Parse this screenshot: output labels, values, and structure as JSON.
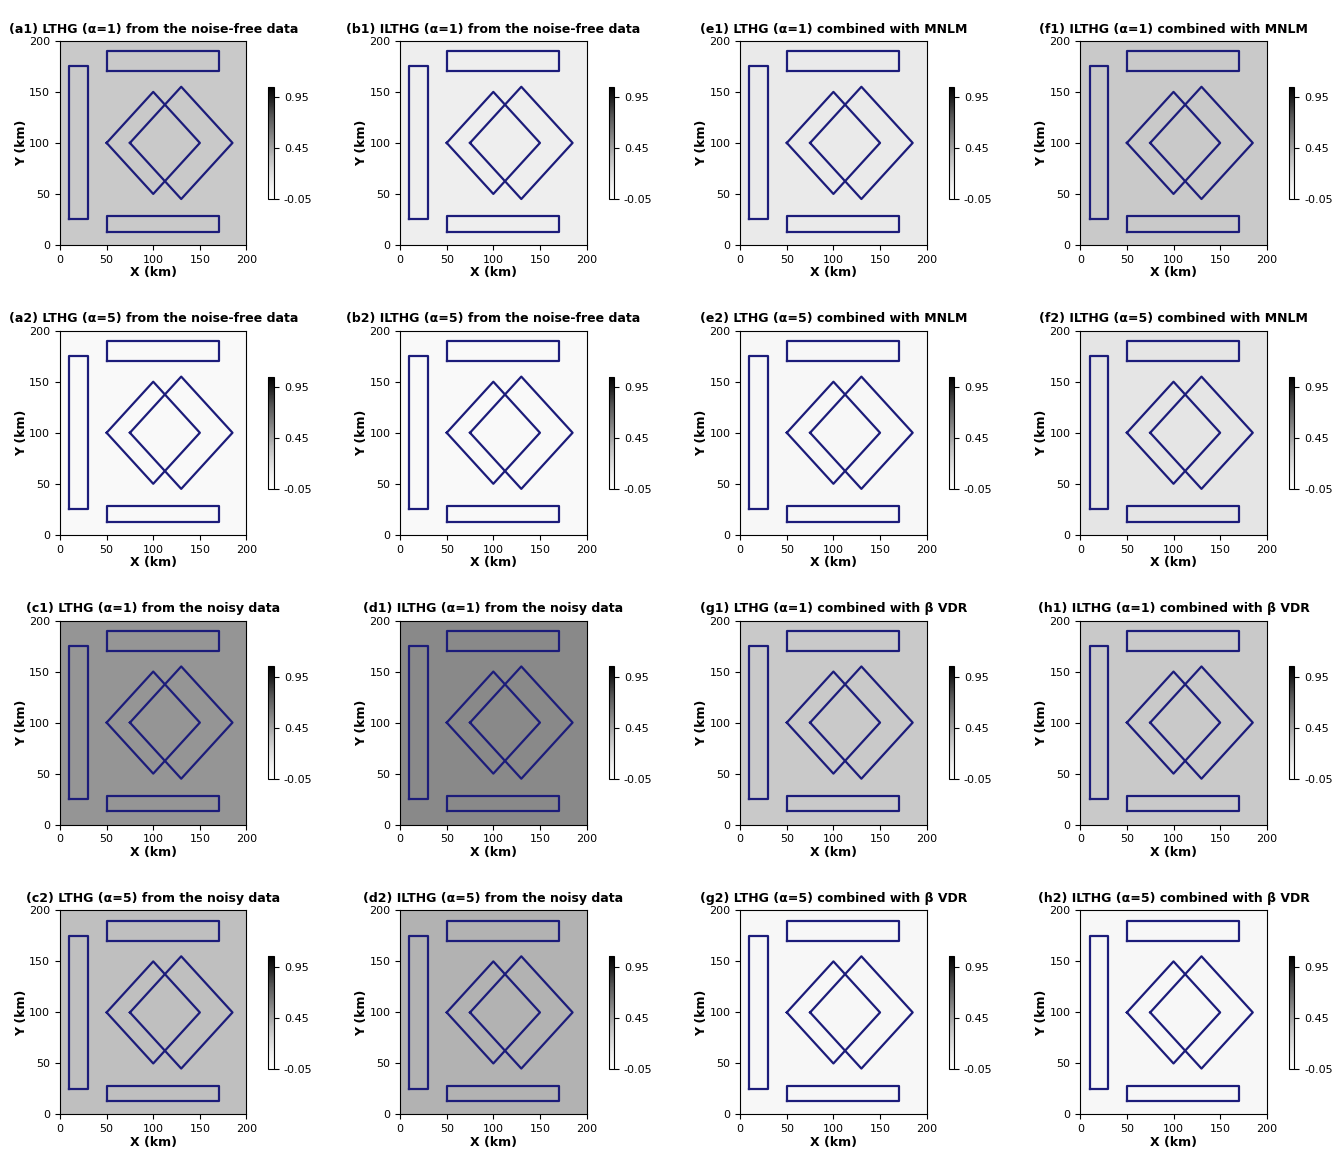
{
  "model_outlines": [
    [
      [
        10,
        25
      ],
      [
        30,
        25
      ],
      [
        30,
        175
      ],
      [
        10,
        175
      ],
      [
        10,
        25
      ]
    ],
    [
      [
        50,
        170
      ],
      [
        170,
        170
      ],
      [
        170,
        190
      ],
      [
        50,
        190
      ],
      [
        50,
        170
      ]
    ],
    [
      [
        50,
        13
      ],
      [
        170,
        13
      ],
      [
        170,
        28
      ],
      [
        50,
        28
      ],
      [
        50,
        13
      ]
    ],
    [
      [
        50,
        100
      ],
      [
        100,
        150
      ],
      [
        150,
        100
      ],
      [
        100,
        50
      ],
      [
        50,
        100
      ]
    ],
    [
      [
        75,
        100
      ],
      [
        130,
        155
      ],
      [
        185,
        100
      ],
      [
        130,
        45
      ],
      [
        75,
        100
      ]
    ]
  ],
  "chart_data": [
    {
      "type": "heatmap",
      "title": "(a1) LTHG (α=1) from the noise-free data",
      "x_label": "X (km)",
      "y_label": "Y (km)",
      "xlim": [
        0,
        200
      ],
      "ylim": [
        0,
        200
      ],
      "xticks": [
        0,
        50,
        100,
        150,
        200
      ],
      "yticks": [
        0,
        50,
        100,
        150,
        200
      ],
      "colorbar_range": [
        -0.05,
        1.05
      ],
      "colorbar_ticks": [
        -0.05,
        0.45,
        0.95
      ],
      "cells": [
        [
          0.3
        ]
      ],
      "color": "#1c1c7a"
    },
    {
      "type": "heatmap",
      "title": "(b1) ILTHG (α=1) from the noise-free data",
      "x_label": "X (km)",
      "y_label": "Y (km)",
      "xlim": [
        0,
        200
      ],
      "ylim": [
        0,
        200
      ],
      "xticks": [
        0,
        50,
        100,
        150,
        200
      ],
      "yticks": [
        0,
        50,
        100,
        150,
        200
      ],
      "colorbar_range": [
        -0.05,
        1.05
      ],
      "colorbar_ticks": [
        -0.05,
        0.45,
        0.95
      ],
      "cells": [
        [
          0.1
        ]
      ],
      "color": "#1c1c7a"
    },
    {
      "type": "heatmap",
      "title": "(e1) LTHG (α=1) combined with MNLM",
      "x_label": "X (km)",
      "y_label": "Y (km)",
      "xlim": [
        0,
        200
      ],
      "ylim": [
        0,
        200
      ],
      "xticks": [
        0,
        50,
        100,
        150,
        200
      ],
      "yticks": [
        0,
        50,
        100,
        150,
        200
      ],
      "colorbar_range": [
        -0.05,
        1.05
      ],
      "colorbar_ticks": [
        -0.05,
        0.45,
        0.95
      ],
      "cells": [
        [
          0.12
        ]
      ],
      "color": "#1c1c7a"
    },
    {
      "type": "heatmap",
      "title": "(f1) ILTHG (α=1) combined with MNLM",
      "x_label": "X (km)",
      "y_label": "Y (km)",
      "xlim": [
        0,
        200
      ],
      "ylim": [
        0,
        200
      ],
      "xticks": [
        0,
        50,
        100,
        150,
        200
      ],
      "yticks": [
        0,
        50,
        100,
        150,
        200
      ],
      "colorbar_range": [
        -0.05,
        1.05
      ],
      "colorbar_ticks": [
        -0.05,
        0.45,
        0.95
      ],
      "cells": [
        [
          0.3
        ]
      ],
      "color": "#1c1c7a"
    },
    {
      "type": "heatmap",
      "title": "(a2) LTHG (α=5) from the noise-free data",
      "x_label": "X (km)",
      "y_label": "Y (km)",
      "xlim": [
        0,
        200
      ],
      "ylim": [
        0,
        200
      ],
      "xticks": [
        0,
        50,
        100,
        150,
        200
      ],
      "yticks": [
        0,
        50,
        100,
        150,
        200
      ],
      "colorbar_range": [
        -0.05,
        1.05
      ],
      "colorbar_ticks": [
        -0.05,
        0.45,
        0.95
      ],
      "cells": [
        [
          0.0
        ]
      ],
      "color": "#1c1c7a"
    },
    {
      "type": "heatmap",
      "title": "(b2) ILTHG (α=5) from the noise-free data",
      "x_label": "X (km)",
      "y_label": "Y (km)",
      "xlim": [
        0,
        200
      ],
      "ylim": [
        0,
        200
      ],
      "xticks": [
        0,
        50,
        100,
        150,
        200
      ],
      "yticks": [
        0,
        50,
        100,
        150,
        200
      ],
      "colorbar_range": [
        -0.05,
        1.05
      ],
      "colorbar_ticks": [
        -0.05,
        0.45,
        0.95
      ],
      "cells": [
        [
          0.0
        ]
      ],
      "color": "#1c1c7a"
    },
    {
      "type": "heatmap",
      "title": "(e2) LTHG (α=5) combined with MNLM",
      "x_label": "X (km)",
      "y_label": "Y (km)",
      "xlim": [
        0,
        200
      ],
      "ylim": [
        0,
        200
      ],
      "xticks": [
        0,
        50,
        100,
        150,
        200
      ],
      "yticks": [
        0,
        50,
        100,
        150,
        200
      ],
      "colorbar_range": [
        -0.05,
        1.05
      ],
      "colorbar_ticks": [
        -0.05,
        0.45,
        0.95
      ],
      "cells": [
        [
          0.02
        ]
      ],
      "color": "#1c1c7a"
    },
    {
      "type": "heatmap",
      "title": "(f2) ILTHG (α=5) combined with MNLM",
      "x_label": "X (km)",
      "y_label": "Y (km)",
      "xlim": [
        0,
        200
      ],
      "ylim": [
        0,
        200
      ],
      "xticks": [
        0,
        50,
        100,
        150,
        200
      ],
      "yticks": [
        0,
        50,
        100,
        150,
        200
      ],
      "colorbar_range": [
        -0.05,
        1.05
      ],
      "colorbar_ticks": [
        -0.05,
        0.45,
        0.95
      ],
      "cells": [
        [
          0.15
        ]
      ],
      "color": "#1c1c7a"
    },
    {
      "type": "heatmap",
      "title": "(c1) LTHG (α=1) from the noisy data",
      "x_label": "X (km)",
      "y_label": "Y (km)",
      "xlim": [
        0,
        200
      ],
      "ylim": [
        0,
        200
      ],
      "xticks": [
        0,
        50,
        100,
        150,
        200
      ],
      "yticks": [
        0,
        50,
        100,
        150,
        200
      ],
      "colorbar_range": [
        -0.05,
        1.05
      ],
      "colorbar_ticks": [
        -0.05,
        0.45,
        0.95
      ],
      "cells": [
        [
          0.5
        ]
      ],
      "color": "#1c1c7a"
    },
    {
      "type": "heatmap",
      "title": "(d1) ILTHG (α=1) from the noisy data",
      "x_label": "X (km)",
      "y_label": "Y (km)",
      "xlim": [
        0,
        200
      ],
      "ylim": [
        0,
        200
      ],
      "xticks": [
        0,
        50,
        100,
        150,
        200
      ],
      "yticks": [
        0,
        50,
        100,
        150,
        200
      ],
      "colorbar_range": [
        -0.05,
        1.05
      ],
      "colorbar_ticks": [
        -0.05,
        0.45,
        0.95
      ],
      "cells": [
        [
          0.55
        ]
      ],
      "color": "#1c1c7a"
    },
    {
      "type": "heatmap",
      "title": "(g1) LTHG (α=1) combined with β VDR",
      "x_label": "X (km)",
      "y_label": "Y (km)",
      "xlim": [
        0,
        200
      ],
      "ylim": [
        0,
        200
      ],
      "xticks": [
        0,
        50,
        100,
        150,
        200
      ],
      "yticks": [
        0,
        50,
        100,
        150,
        200
      ],
      "colorbar_range": [
        -0.05,
        1.05
      ],
      "colorbar_ticks": [
        -0.05,
        0.45,
        0.95
      ],
      "cells": [
        [
          0.3
        ]
      ],
      "color": "#1c1c7a"
    },
    {
      "type": "heatmap",
      "title": "(h1) ILTHG (α=1) combined with β VDR",
      "x_label": "X (km)",
      "y_label": "Y (km)",
      "xlim": [
        0,
        200
      ],
      "ylim": [
        0,
        200
      ],
      "xticks": [
        0,
        50,
        100,
        150,
        200
      ],
      "yticks": [
        0,
        50,
        100,
        150,
        200
      ],
      "colorbar_range": [
        -0.05,
        1.05
      ],
      "colorbar_ticks": [
        -0.05,
        0.45,
        0.95
      ],
      "cells": [
        [
          0.3
        ]
      ],
      "color": "#1c1c7a"
    },
    {
      "type": "heatmap",
      "title": "(c2) LTHG (α=5) from the noisy data",
      "x_label": "X (km)",
      "y_label": "Y (km)",
      "xlim": [
        0,
        200
      ],
      "ylim": [
        0,
        200
      ],
      "xticks": [
        0,
        50,
        100,
        150,
        200
      ],
      "yticks": [
        0,
        50,
        100,
        150,
        200
      ],
      "colorbar_range": [
        -0.05,
        1.05
      ],
      "colorbar_ticks": [
        -0.05,
        0.45,
        0.95
      ],
      "cells": [
        [
          0.35
        ]
      ],
      "color": "#1c1c7a"
    },
    {
      "type": "heatmap",
      "title": "(d2) ILTHG (α=5) from the noisy data",
      "x_label": "X (km)",
      "y_label": "Y (km)",
      "xlim": [
        0,
        200
      ],
      "ylim": [
        0,
        200
      ],
      "xticks": [
        0,
        50,
        100,
        150,
        200
      ],
      "yticks": [
        0,
        50,
        100,
        150,
        200
      ],
      "colorbar_range": [
        -0.05,
        1.05
      ],
      "colorbar_ticks": [
        -0.05,
        0.45,
        0.95
      ],
      "cells": [
        [
          0.4
        ]
      ],
      "color": "#1c1c7a"
    },
    {
      "type": "heatmap",
      "title": "(g2) LTHG (α=5) combined with β VDR",
      "x_label": "X (km)",
      "y_label": "Y (km)",
      "xlim": [
        0,
        200
      ],
      "ylim": [
        0,
        200
      ],
      "xticks": [
        0,
        50,
        100,
        150,
        200
      ],
      "yticks": [
        0,
        50,
        100,
        150,
        200
      ],
      "colorbar_range": [
        -0.05,
        1.05
      ],
      "colorbar_ticks": [
        -0.05,
        0.45,
        0.95
      ],
      "cells": [
        [
          0.02
        ]
      ],
      "color": "#1c1c7a"
    },
    {
      "type": "heatmap",
      "title": "(h2) ILTHG (α=5) combined with β VDR",
      "x_label": "X (km)",
      "y_label": "Y (km)",
      "xlim": [
        0,
        200
      ],
      "ylim": [
        0,
        200
      ],
      "xticks": [
        0,
        50,
        100,
        150,
        200
      ],
      "yticks": [
        0,
        50,
        100,
        150,
        200
      ],
      "colorbar_range": [
        -0.05,
        1.05
      ],
      "colorbar_ticks": [
        -0.05,
        0.45,
        0.95
      ],
      "cells": [
        [
          0.02
        ]
      ],
      "color": "#1c1c7a"
    }
  ]
}
